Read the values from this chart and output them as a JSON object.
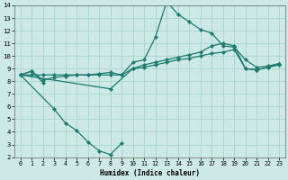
{
  "xlabel": "Humidex (Indice chaleur)",
  "ylabel": "",
  "xlim": [
    -0.5,
    23.5
  ],
  "ylim": [
    2,
    14
  ],
  "xticks": [
    0,
    1,
    2,
    3,
    4,
    5,
    6,
    7,
    8,
    9,
    10,
    11,
    12,
    13,
    14,
    15,
    16,
    17,
    18,
    19,
    20,
    21,
    22,
    23
  ],
  "yticks": [
    2,
    3,
    4,
    5,
    6,
    7,
    8,
    9,
    10,
    11,
    12,
    13,
    14
  ],
  "bg_color": "#cce9e5",
  "grid_color": "#aad4cf",
  "line_color": "#1a7a6e",
  "lines": [
    {
      "x": [
        0,
        1,
        2,
        3,
        4,
        5,
        6,
        7,
        8,
        9,
        10,
        11,
        12,
        13,
        14,
        15,
        16,
        17,
        18,
        19,
        20,
        21,
        22,
        23
      ],
      "y": [
        8.5,
        8.8,
        8.1,
        8.3,
        8.4,
        8.5,
        8.5,
        8.6,
        8.7,
        8.5,
        9.5,
        9.7,
        11.5,
        14.3,
        13.3,
        12.7,
        12.1,
        11.8,
        10.8,
        10.7,
        9.7,
        9.1,
        9.2,
        9.4
      ]
    },
    {
      "x": [
        0,
        1,
        2,
        3,
        4,
        5,
        6,
        7,
        8,
        9,
        10,
        11,
        12,
        13,
        14,
        15,
        16,
        17,
        18,
        19,
        20,
        21,
        22,
        23
      ],
      "y": [
        8.5,
        8.5,
        8.5,
        8.5,
        8.5,
        8.5,
        8.5,
        8.5,
        8.5,
        8.5,
        9.0,
        9.1,
        9.3,
        9.5,
        9.7,
        9.8,
        10.0,
        10.2,
        10.3,
        10.5,
        9.0,
        8.9,
        9.1,
        9.3
      ]
    },
    {
      "x": [
        0,
        8,
        10,
        11,
        12,
        13,
        14,
        15,
        16,
        17,
        18,
        19,
        20,
        21,
        22,
        23
      ],
      "y": [
        8.5,
        7.4,
        9.0,
        9.3,
        9.5,
        9.7,
        9.9,
        10.1,
        10.3,
        10.8,
        11.0,
        10.8,
        9.0,
        8.9,
        9.1,
        9.4
      ]
    },
    {
      "x": [
        0,
        1,
        2
      ],
      "y": [
        8.5,
        8.8,
        7.9
      ]
    },
    {
      "comment": "dip line 0,3..9",
      "x": [
        0,
        3,
        4,
        5,
        6,
        7,
        8,
        9
      ],
      "y": [
        8.5,
        5.8,
        4.7,
        4.1,
        3.2,
        2.5,
        2.2,
        3.1
      ]
    }
  ]
}
